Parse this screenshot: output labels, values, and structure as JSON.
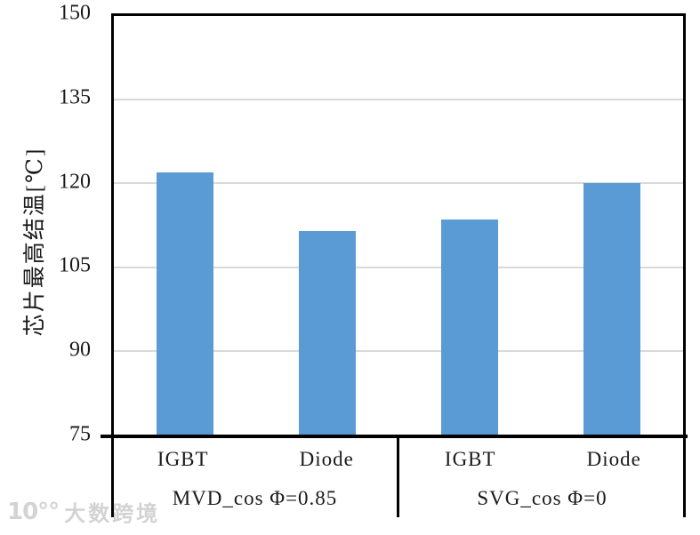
{
  "watermark": {
    "logo": "10°°",
    "text": "大数跨境"
  },
  "chart_data": {
    "type": "bar",
    "title": "",
    "ylabel": "芯片最高结温[℃]",
    "xlabel": "",
    "ylim": [
      75,
      150
    ],
    "yticks": [
      150,
      135,
      120,
      105,
      90,
      75
    ],
    "grid": "horizontal gridlines at 135, 120, 105, 90",
    "legend": "none",
    "bar_color": "#5b9bd5",
    "gridline_color": "#d9d9d9",
    "categories": [
      "IGBT",
      "Diode",
      "IGBT",
      "Diode"
    ],
    "values": [
      122,
      111.5,
      113.5,
      120
    ],
    "group_labels": [
      "MVD_cos Φ=0.85",
      "SVG_cos Φ=0"
    ],
    "groups": [
      {
        "label": "MVD_cos Φ=0.85",
        "bars": [
          {
            "category": "IGBT",
            "value": 122
          },
          {
            "category": "Diode",
            "value": 111.5
          }
        ]
      },
      {
        "label": "SVG_cos Φ=0",
        "bars": [
          {
            "category": "IGBT",
            "value": 113.5
          },
          {
            "category": "Diode",
            "value": 120
          }
        ]
      }
    ]
  }
}
